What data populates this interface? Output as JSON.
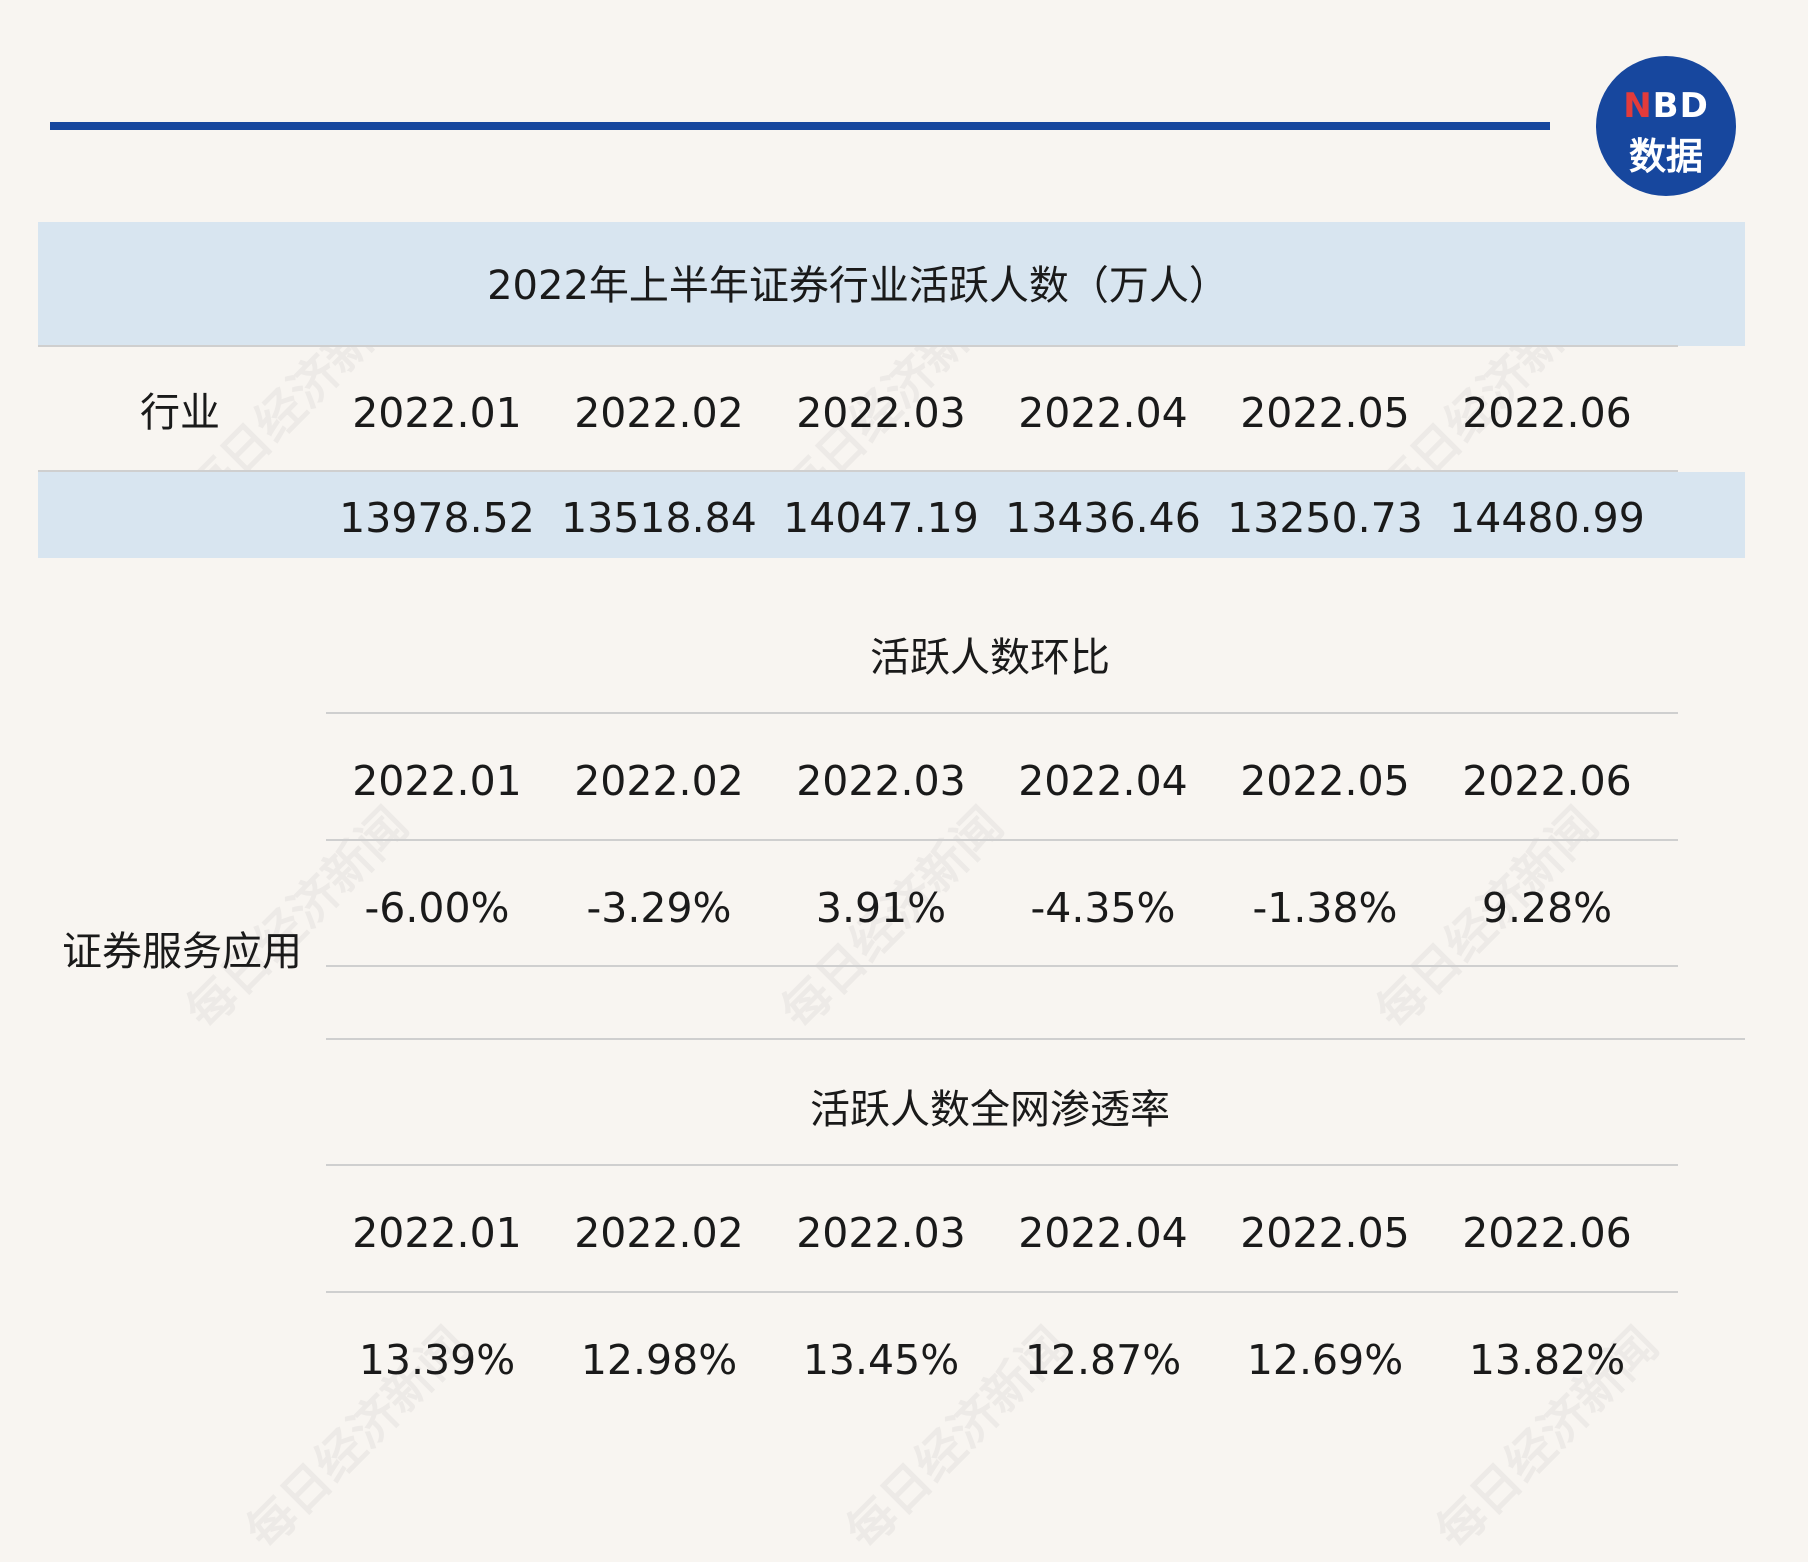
{
  "title": "2022年上半年证券行业活跃人数（万人）",
  "logo": {
    "line1_n": "N",
    "line1_rest": "BD",
    "line2": "数据"
  },
  "watermark": "每日经济新闻",
  "section1": {
    "row_label": "行业",
    "months": [
      "2022.01",
      "2022.02",
      "2022.03",
      "2022.04",
      "2022.05",
      "2022.06"
    ],
    "values": [
      "13978.52",
      "13518.84",
      "14047.19",
      "13436.46",
      "13250.73",
      "14480.99"
    ]
  },
  "side_label": "证券服务应用",
  "section2": {
    "title": "活跃人数环比",
    "months": [
      "2022.01",
      "2022.02",
      "2022.03",
      "2022.04",
      "2022.05",
      "2022.06"
    ],
    "values": [
      "-6.00%",
      "-3.29%",
      "3.91%",
      "-4.35%",
      "-1.38%",
      "9.28%"
    ]
  },
  "section3": {
    "title": "活跃人数全网渗透率",
    "months": [
      "2022.01",
      "2022.02",
      "2022.03",
      "2022.04",
      "2022.05",
      "2022.06"
    ],
    "values": [
      "13.39%",
      "12.98%",
      "13.45%",
      "12.87%",
      "12.69%",
      "13.82%"
    ]
  },
  "colors": {
    "accent": "#17479e",
    "band": "#d8e5f0",
    "background": "#f8f5f1",
    "logo_n": "#e23b3b"
  },
  "chart_data": {
    "type": "table",
    "title": "2022年上半年证券行业活跃人数（万人）",
    "categories": [
      "2022.01",
      "2022.02",
      "2022.03",
      "2022.04",
      "2022.05",
      "2022.06"
    ],
    "series": [
      {
        "name": "行业",
        "values": [
          13978.52,
          13518.84,
          14047.19,
          13436.46,
          13250.73,
          14480.99
        ]
      },
      {
        "name": "活跃人数环比",
        "values": [
          -6.0,
          -3.29,
          3.91,
          -4.35,
          -1.38,
          9.28
        ]
      },
      {
        "name": "活跃人数全网渗透率",
        "values": [
          13.39,
          12.98,
          13.45,
          12.87,
          12.69,
          13.82
        ]
      }
    ]
  }
}
